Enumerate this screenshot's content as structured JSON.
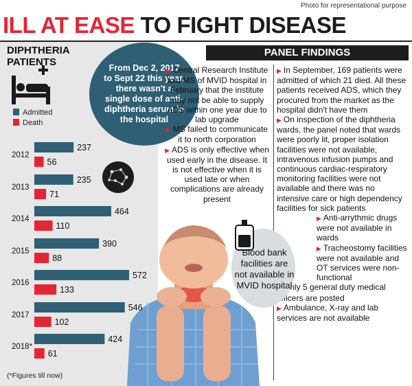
{
  "credit": "Photo for representational purpose",
  "headline": {
    "part1": "ILL AT EASE",
    "part2": "TO FIGHT DISEASE"
  },
  "section_title_line1": "DIPHTHERIA",
  "section_title_line2": "PATIENTS",
  "legend": {
    "admitted": "Admitted",
    "death": "Death"
  },
  "colors": {
    "admitted": "#2f5f74",
    "death": "#e42535",
    "accent": "#e42535"
  },
  "circle_text": "From Dec 2, 2017 to Sept 22 this year, there wasn't a single dose of anti-diphtheria serum in the hospital",
  "panel_title": "PANEL FINDINGS",
  "col1": [
    "Central Research Institute told MS of MVID hospital in February that the institute may not be able to supply ADS within one year due to lab upgrade",
    "MS failed to communicate it to north corporation",
    "ADS is only effective when used early in the disease. It is not effective when it is used late or when complications are already present"
  ],
  "col2": [
    "In September, 169 patients were admitted of which 21 died. All these patients received ADS, which they procured from the market as the hospital didn't have them",
    "On inspection of the diphtheria wards, the panel noted that wards were poorly lit, proper isolation facilities were not available, intravenous infusion pumps and continuous cardiac-respiratory monitoring facilities were not available and there was no intensive care or high dependency facilities for sick patients",
    "Anti-arrythmic drugs were not available in wards",
    "Tracheostomy facilities were not available and OT services were non-functional",
    "Only 5 general duty medical officers are posted",
    "Ambulance, X-ray and lab services are not available"
  ],
  "blood_text": "Blood bank facilities are not available in MVID hospital",
  "footnote": "(*Figures till now)",
  "chart_data": {
    "type": "bar",
    "orientation": "horizontal",
    "categories": [
      "2012",
      "2013",
      "2014",
      "2015",
      "2016",
      "2017",
      "2018*"
    ],
    "series": [
      {
        "name": "Admitted",
        "values": [
          237,
          235,
          464,
          390,
          572,
          546,
          424
        ]
      },
      {
        "name": "Death",
        "values": [
          56,
          71,
          110,
          88,
          133,
          102,
          61
        ]
      }
    ],
    "xlim": [
      0,
      600
    ]
  }
}
